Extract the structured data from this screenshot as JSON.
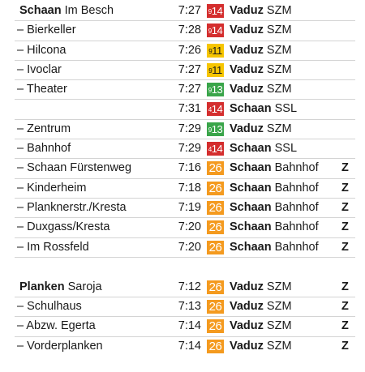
{
  "rows_a": [
    {
      "stop_bold": "Schaan",
      "stop_rest": " Im Besch",
      "time": "7:27",
      "line_pre": "9",
      "line_num": "14",
      "line_color": "red",
      "dest_bold": "Vaduz",
      "dest_rest": " SZM",
      "note": ""
    },
    {
      "stop_bold": "",
      "stop_rest": "– Bierkeller",
      "time": "7:28",
      "line_pre": "9",
      "line_num": "14",
      "line_color": "red",
      "dest_bold": "Vaduz",
      "dest_rest": " SZM",
      "note": ""
    },
    {
      "stop_bold": "",
      "stop_rest": "– Hilcona",
      "time": "7:26",
      "line_pre": "9",
      "line_num": "11",
      "line_color": "yellow",
      "dest_bold": "Vaduz",
      "dest_rest": " SZM",
      "note": ""
    },
    {
      "stop_bold": "",
      "stop_rest": "– Ivoclar",
      "time": "7:27",
      "line_pre": "9",
      "line_num": "11",
      "line_color": "yellow",
      "dest_bold": "Vaduz",
      "dest_rest": " SZM",
      "note": ""
    },
    {
      "stop_bold": "",
      "stop_rest": "– Theater",
      "time": "7:27",
      "line_pre": "9",
      "line_num": "13",
      "line_color": "green",
      "dest_bold": "Vaduz",
      "dest_rest": " SZM",
      "note": ""
    },
    {
      "stop_bold": "",
      "stop_rest": "",
      "time": "7:31",
      "line_pre": "4",
      "line_num": "14",
      "line_color": "red",
      "dest_bold": "Schaan",
      "dest_rest": " SSL",
      "note": ""
    },
    {
      "stop_bold": "",
      "stop_rest": "– Zentrum",
      "time": "7:29",
      "line_pre": "9",
      "line_num": "13",
      "line_color": "green",
      "dest_bold": "Vaduz",
      "dest_rest": " SZM",
      "note": ""
    },
    {
      "stop_bold": "",
      "stop_rest": "– Bahnhof",
      "time": "7:29",
      "line_pre": "4",
      "line_num": "14",
      "line_color": "red",
      "dest_bold": "Schaan",
      "dest_rest": " SSL",
      "note": ""
    },
    {
      "stop_bold": "",
      "stop_rest": "– Schaan Fürstenweg",
      "time": "7:16",
      "line_pre": "",
      "line_num": "26",
      "line_color": "orange",
      "dest_bold": "Schaan",
      "dest_rest": " Bahnhof",
      "note": "Z"
    },
    {
      "stop_bold": "",
      "stop_rest": "– Kinderheim",
      "time": "7:18",
      "line_pre": "",
      "line_num": "26",
      "line_color": "orange",
      "dest_bold": "Schaan",
      "dest_rest": " Bahnhof",
      "note": "Z"
    },
    {
      "stop_bold": "",
      "stop_rest": "– Planknerstr./Kresta",
      "time": "7:19",
      "line_pre": "",
      "line_num": "26",
      "line_color": "orange",
      "dest_bold": "Schaan",
      "dest_rest": " Bahnhof",
      "note": "Z"
    },
    {
      "stop_bold": "",
      "stop_rest": "– Duxgass/Kresta",
      "time": "7:20",
      "line_pre": "",
      "line_num": "26",
      "line_color": "orange",
      "dest_bold": "Schaan",
      "dest_rest": " Bahnhof",
      "note": "Z"
    },
    {
      "stop_bold": "",
      "stop_rest": "– Im Rossfeld",
      "time": "7:20",
      "line_pre": "",
      "line_num": "26",
      "line_color": "orange",
      "dest_bold": "Schaan",
      "dest_rest": " Bahnhof",
      "note": "Z"
    }
  ],
  "rows_b": [
    {
      "stop_bold": "Planken",
      "stop_rest": " Saroja",
      "time": "7:12",
      "line_pre": "",
      "line_num": "26",
      "line_color": "orange",
      "dest_bold": "Vaduz",
      "dest_rest": " SZM",
      "note": "Z"
    },
    {
      "stop_bold": "",
      "stop_rest": "– Schulhaus",
      "time": "7:13",
      "line_pre": "",
      "line_num": "26",
      "line_color": "orange",
      "dest_bold": "Vaduz",
      "dest_rest": " SZM",
      "note": "Z"
    },
    {
      "stop_bold": "",
      "stop_rest": "– Abzw. Egerta",
      "time": "7:14",
      "line_pre": "",
      "line_num": "26",
      "line_color": "orange",
      "dest_bold": "Vaduz",
      "dest_rest": " SZM",
      "note": "Z"
    },
    {
      "stop_bold": "",
      "stop_rest": "– Vorderplanken",
      "time": "7:14",
      "line_pre": "",
      "line_num": "26",
      "line_color": "orange",
      "dest_bold": "Vaduz",
      "dest_rest": " SZM",
      "note": "Z"
    }
  ]
}
